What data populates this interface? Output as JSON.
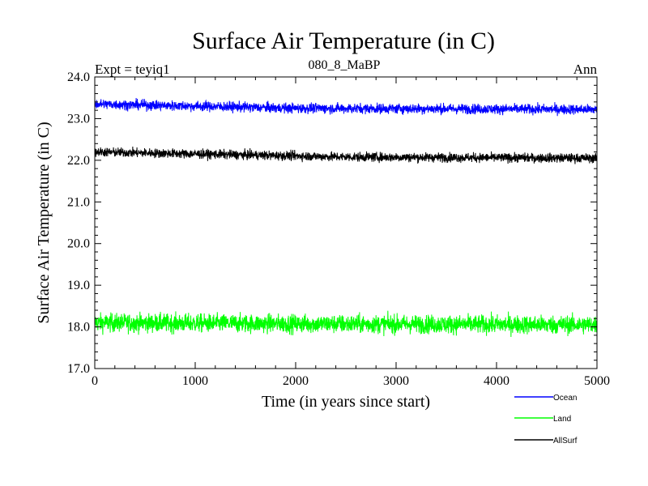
{
  "chart_data": {
    "type": "line",
    "title": "Surface Air Temperature (in C)",
    "subtitle": "080_8_MaBP",
    "experiment_label": "Expt = teyiq1",
    "season_label": "Ann",
    "xlabel": "Time (in years since start)",
    "ylabel": "Surface Air Temperature (in C)",
    "xlim": [
      0,
      5000
    ],
    "ylim": [
      17.0,
      24.0
    ],
    "x_ticks": [
      0,
      1000,
      2000,
      3000,
      4000,
      5000
    ],
    "x_tick_labels": [
      "0",
      "1000",
      "2000",
      "3000",
      "4000",
      "5000"
    ],
    "y_ticks": [
      17.0,
      18.0,
      19.0,
      20.0,
      21.0,
      22.0,
      23.0,
      24.0
    ],
    "y_tick_labels": [
      "17.0",
      "18.0",
      "19.0",
      "20.0",
      "21.0",
      "22.0",
      "23.0",
      "24.0"
    ],
    "grid": false,
    "legend_position": "bottom-right",
    "series": [
      {
        "name": "Ocean",
        "color": "#0000ff",
        "mean": 23.27,
        "amplitude": 0.12,
        "trend": [
          [
            0,
            23.35
          ],
          [
            2000,
            23.25
          ],
          [
            5000,
            23.22
          ]
        ]
      },
      {
        "name": "Land",
        "color": "#00ff00",
        "mean": 18.08,
        "amplitude": 0.22,
        "trend": [
          [
            0,
            18.1
          ],
          [
            2500,
            18.07
          ],
          [
            5000,
            18.05
          ]
        ]
      },
      {
        "name": "AllSurf",
        "color": "#000000",
        "mean": 22.1,
        "amplitude": 0.11,
        "trend": [
          [
            0,
            22.2
          ],
          [
            2500,
            22.08
          ],
          [
            5000,
            22.05
          ]
        ]
      }
    ]
  }
}
